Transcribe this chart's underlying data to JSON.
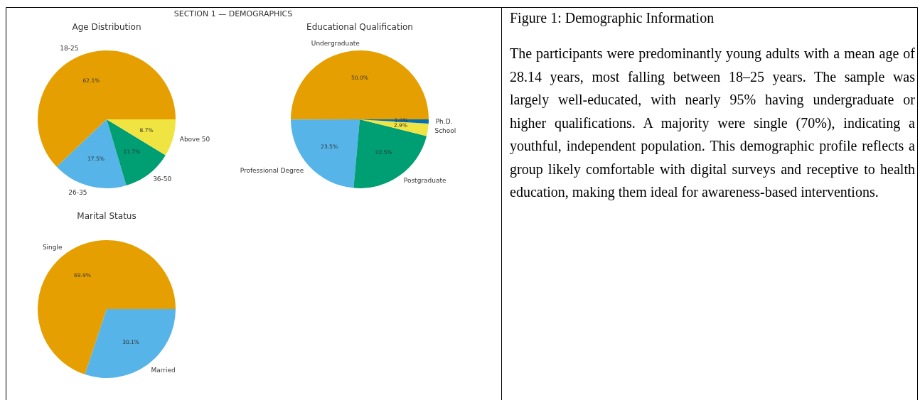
{
  "chart_data": [
    {
      "type": "other",
      "title": "SECTION 1 — DEMOGRAPHICS"
    },
    {
      "type": "pie",
      "title": "Age Distribution",
      "categories": [
        "18-25",
        "26-35",
        "36-50",
        "Above 50"
      ],
      "values": [
        62.1,
        17.5,
        11.7,
        8.7
      ],
      "colors": [
        "#e69f00",
        "#56b4e9",
        "#009e73",
        "#f0e442"
      ],
      "value_labels": [
        "62.1%",
        "17.5%",
        "11.7%",
        "8.7%"
      ]
    },
    {
      "type": "pie",
      "title": "Educational Qualification",
      "categories": [
        "Undergraduate",
        "Professional Degree",
        "Postgraduate",
        "School",
        "Ph.D."
      ],
      "values": [
        50.0,
        23.5,
        22.5,
        2.9,
        1.0
      ],
      "colors": [
        "#e69f00",
        "#56b4e9",
        "#009e73",
        "#f0e442",
        "#0072b2"
      ],
      "value_labels": [
        "50.0%",
        "23.5%",
        "22.5%",
        "2.9%",
        "1.0%"
      ]
    },
    {
      "type": "pie",
      "title": "Marital Status",
      "categories": [
        "Single",
        "Married"
      ],
      "values": [
        69.9,
        30.1
      ],
      "colors": [
        "#e69f00",
        "#56b4e9"
      ],
      "value_labels": [
        "69.9%",
        "30.1%"
      ]
    },
    {
      "type": "other",
      "title": "Figure 1: Demographic Information",
      "annotations": [
        "The participants were predominantly young adults with a mean age of 28.14 years, most falling between 18–25 years. The sample was largely well-educated, with nearly 95% having undergraduate or higher qualifications. A majority were single (70%), indicating a youthful, independent population. This demographic profile reflects a group likely comfortable with digital surveys and receptive to health education, making them ideal for awareness-based interventions."
      ]
    }
  ]
}
